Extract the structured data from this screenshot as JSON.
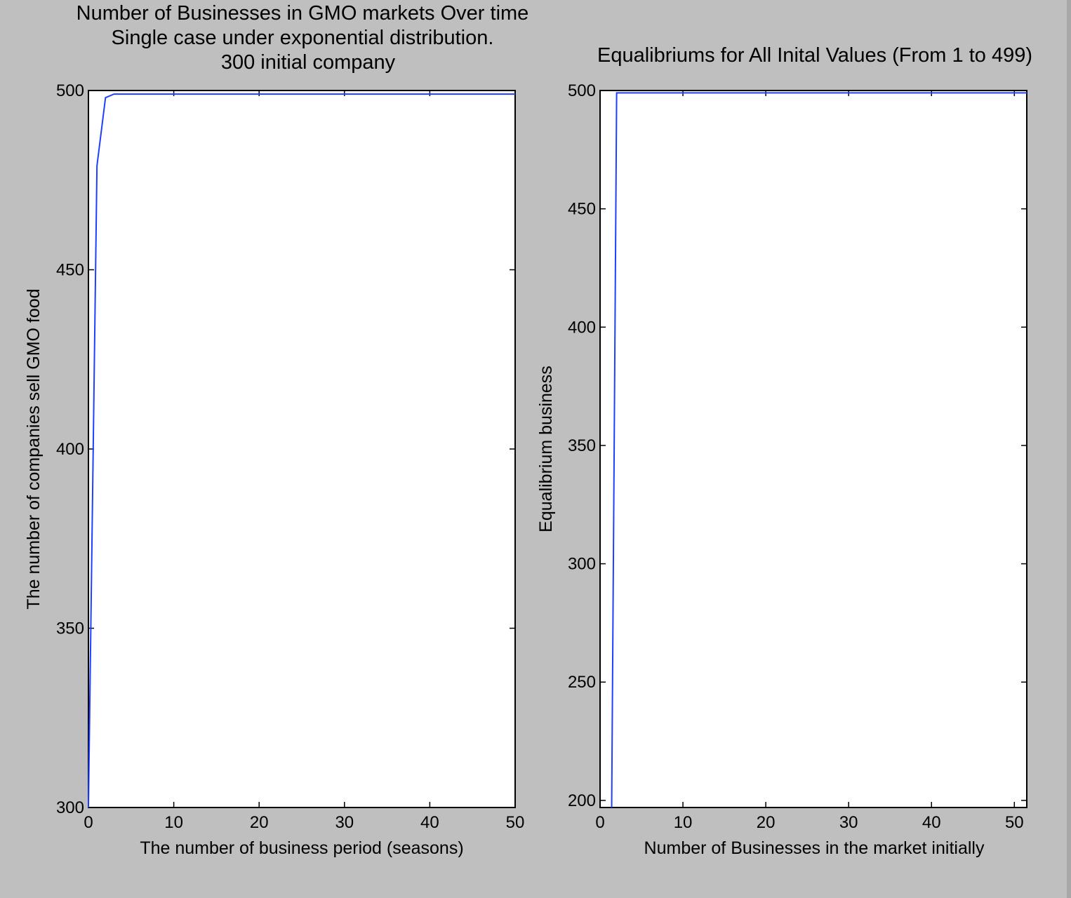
{
  "chart_data": [
    {
      "type": "line",
      "title": "Number of Businesses in GMO markets Over time",
      "subtitle": [
        "Single case under exponential distribution.",
        "300 initial company"
      ],
      "xlabel": "The number of business period (seasons)",
      "ylabel": "The number of companies sell GMO food",
      "xlim": [
        0,
        50
      ],
      "ylim": [
        300,
        500
      ],
      "xticks": [
        0,
        10,
        20,
        30,
        40,
        50
      ],
      "yticks": [
        300,
        350,
        400,
        450,
        500
      ],
      "grid": false,
      "color": "#1f3fff",
      "x": [
        0,
        1,
        2,
        3,
        4,
        5,
        10,
        20,
        30,
        40,
        50
      ],
      "y": [
        300,
        479,
        498,
        499,
        499,
        499,
        499,
        499,
        499,
        499,
        499
      ]
    },
    {
      "type": "line",
      "title": "Equalibriums for All Inital Values (From 1 to 499)",
      "xlabel": "Number of Businesses in the market initially",
      "ylabel": "Equalibrium business",
      "xlim": [
        0,
        51.5
      ],
      "ylim": [
        197,
        500
      ],
      "xticks": [
        0,
        10,
        20,
        30,
        40,
        50
      ],
      "yticks": [
        200,
        250,
        300,
        350,
        400,
        450,
        500
      ],
      "grid": false,
      "color": "#1f3fff",
      "x": [
        1.4,
        2,
        3,
        10,
        20,
        30,
        40,
        51.5
      ],
      "y": [
        197,
        499,
        499,
        499,
        499,
        499,
        499,
        499
      ]
    }
  ]
}
